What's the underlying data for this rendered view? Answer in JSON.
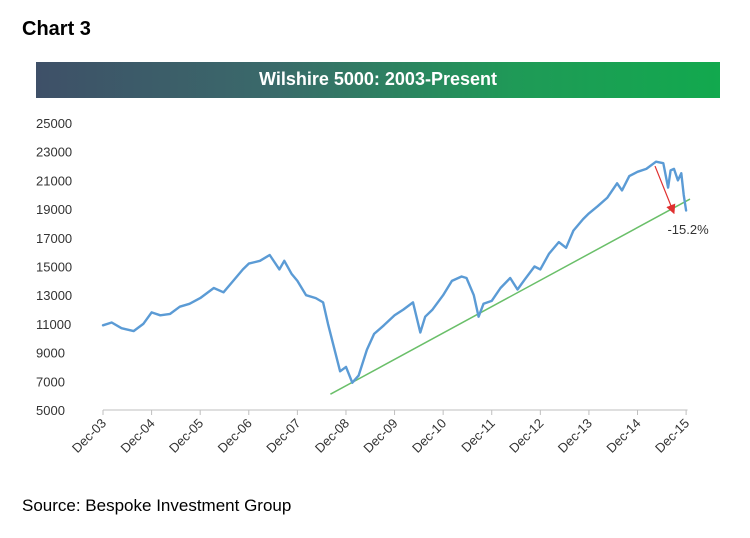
{
  "heading": "Chart 3",
  "source": "Source: Bespoke Investment Group",
  "colors": {
    "series": "#5b9bd5",
    "trendline": "#6abf69",
    "arrow": "#e03030"
  },
  "chart_data": {
    "type": "line",
    "title": "Wilshire 5000: 2003-Present",
    "xlabel": "",
    "ylabel": "",
    "xlim": [
      2003.92,
      2016.0
    ],
    "ylim": [
      5000,
      25000
    ],
    "y_ticks": [
      5000,
      7000,
      9000,
      11000,
      13000,
      15000,
      17000,
      19000,
      21000,
      23000,
      25000
    ],
    "x_ticks": [
      {
        "x": 2003.92,
        "label": "Dec-03"
      },
      {
        "x": 2004.92,
        "label": "Dec-04"
      },
      {
        "x": 2005.92,
        "label": "Dec-05"
      },
      {
        "x": 2006.92,
        "label": "Dec-06"
      },
      {
        "x": 2007.92,
        "label": "Dec-07"
      },
      {
        "x": 2008.92,
        "label": "Dec-08"
      },
      {
        "x": 2009.92,
        "label": "Dec-09"
      },
      {
        "x": 2010.92,
        "label": "Dec-10"
      },
      {
        "x": 2011.92,
        "label": "Dec-11"
      },
      {
        "x": 2012.92,
        "label": "Dec-12"
      },
      {
        "x": 2013.92,
        "label": "Dec-13"
      },
      {
        "x": 2014.92,
        "label": "Dec-14"
      },
      {
        "x": 2015.92,
        "label": "Dec-15"
      }
    ],
    "grid": false,
    "legend": "none",
    "series": [
      {
        "x": [
          2003.92,
          2004.1,
          2004.3,
          2004.55,
          2004.75,
          2004.92,
          2005.1,
          2005.3,
          2005.5,
          2005.7,
          2005.92,
          2006.2,
          2006.4,
          2006.6,
          2006.8,
          2006.92,
          2007.15,
          2007.35,
          2007.55,
          2007.65,
          2007.8,
          2007.92,
          2008.1,
          2008.3,
          2008.45,
          2008.55,
          2008.7,
          2008.8,
          2008.92,
          2009.05,
          2009.18,
          2009.35,
          2009.5,
          2009.7,
          2009.92,
          2010.1,
          2010.3,
          2010.45,
          2010.55,
          2010.7,
          2010.92,
          2011.1,
          2011.3,
          2011.4,
          2011.55,
          2011.65,
          2011.75,
          2011.92,
          2012.1,
          2012.3,
          2012.45,
          2012.6,
          2012.8,
          2012.92,
          2013.1,
          2013.3,
          2013.45,
          2013.6,
          2013.8,
          2013.92,
          2014.1,
          2014.3,
          2014.5,
          2014.6,
          2014.75,
          2014.92,
          2015.1,
          2015.3,
          2015.45,
          2015.55,
          2015.6,
          2015.67,
          2015.75,
          2015.82,
          2015.87,
          2015.92
        ],
        "y": [
          10900,
          11100,
          10700,
          10500,
          11000,
          11800,
          11600,
          11700,
          12200,
          12400,
          12800,
          13500,
          13200,
          14000,
          14800,
          15200,
          15400,
          15800,
          14800,
          15400,
          14500,
          14000,
          13000,
          12800,
          12500,
          11000,
          9000,
          7700,
          8000,
          6900,
          7400,
          9200,
          10300,
          10900,
          11600,
          12000,
          12500,
          10400,
          11500,
          12000,
          13000,
          14000,
          14300,
          14200,
          13000,
          11500,
          12400,
          12600,
          13500,
          14200,
          13400,
          14100,
          15000,
          14800,
          15900,
          16700,
          16300,
          17500,
          18300,
          18700,
          19200,
          19800,
          20800,
          20300,
          21300,
          21600,
          21800,
          22300,
          22200,
          20500,
          21700,
          21800,
          21000,
          21500,
          20000,
          18900
        ]
      }
    ],
    "trendline": {
      "x": [
        2008.6,
        2016.0
      ],
      "y": [
        6100,
        19700
      ]
    },
    "annotation": {
      "text": "-15.2%",
      "arrow_from": {
        "x": 2015.28,
        "y": 22000
      },
      "arrow_to": {
        "x": 2015.66,
        "y": 18800
      }
    }
  }
}
